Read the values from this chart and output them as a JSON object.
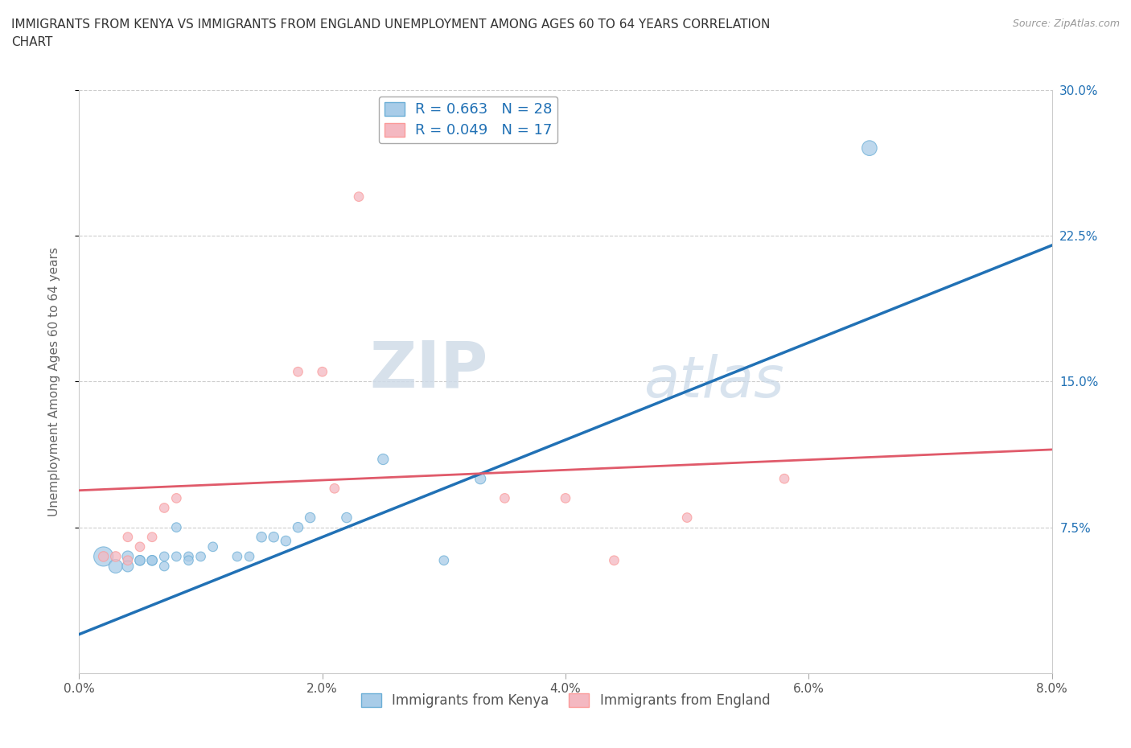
{
  "title_line1": "IMMIGRANTS FROM KENYA VS IMMIGRANTS FROM ENGLAND UNEMPLOYMENT AMONG AGES 60 TO 64 YEARS CORRELATION",
  "title_line2": "CHART",
  "source": "Source: ZipAtlas.com",
  "xlim": [
    0.0,
    0.08
  ],
  "ylim": [
    0.0,
    0.3
  ],
  "ylabel": "Unemployment Among Ages 60 to 64 years",
  "yticks": [
    0.075,
    0.15,
    0.225,
    0.3
  ],
  "ytick_labels": [
    "7.5%",
    "15.0%",
    "22.5%",
    "30.0%"
  ],
  "xticks": [
    0.0,
    0.02,
    0.04,
    0.06,
    0.08
  ],
  "xtick_labels": [
    "0.0%",
    "2.0%",
    "4.0%",
    "6.0%",
    "8.0%"
  ],
  "kenya_x": [
    0.002,
    0.003,
    0.004,
    0.004,
    0.005,
    0.005,
    0.006,
    0.006,
    0.007,
    0.007,
    0.008,
    0.008,
    0.009,
    0.009,
    0.01,
    0.011,
    0.013,
    0.014,
    0.015,
    0.016,
    0.017,
    0.018,
    0.019,
    0.022,
    0.025,
    0.03,
    0.033,
    0.065
  ],
  "kenya_y": [
    0.06,
    0.055,
    0.06,
    0.055,
    0.058,
    0.058,
    0.058,
    0.058,
    0.06,
    0.055,
    0.06,
    0.075,
    0.06,
    0.058,
    0.06,
    0.065,
    0.06,
    0.06,
    0.07,
    0.07,
    0.068,
    0.075,
    0.08,
    0.08,
    0.11,
    0.058,
    0.1,
    0.27
  ],
  "kenya_sizes": [
    300,
    150,
    100,
    100,
    80,
    80,
    80,
    80,
    70,
    70,
    70,
    70,
    70,
    70,
    70,
    70,
    70,
    70,
    80,
    80,
    80,
    80,
    80,
    80,
    90,
    70,
    90,
    180
  ],
  "england_x": [
    0.002,
    0.003,
    0.004,
    0.004,
    0.005,
    0.006,
    0.007,
    0.008,
    0.018,
    0.02,
    0.021,
    0.023,
    0.035,
    0.04,
    0.044,
    0.05,
    0.058
  ],
  "england_y": [
    0.06,
    0.06,
    0.058,
    0.07,
    0.065,
    0.07,
    0.085,
    0.09,
    0.155,
    0.155,
    0.095,
    0.245,
    0.09,
    0.09,
    0.058,
    0.08,
    0.1
  ],
  "england_sizes": [
    80,
    80,
    70,
    70,
    70,
    70,
    70,
    70,
    70,
    70,
    70,
    70,
    70,
    70,
    70,
    70,
    70
  ],
  "kenya_color": "#a8cce8",
  "england_color": "#f4b8c1",
  "kenya_edge_color": "#6baed6",
  "england_edge_color": "#fb9a99",
  "kenya_line_color": "#2171b5",
  "england_line_color": "#e05a6a",
  "kenya_r": 0.663,
  "kenya_n": 28,
  "england_r": 0.049,
  "england_n": 17,
  "legend_label_kenya": "Immigrants from Kenya",
  "legend_label_england": "Immigrants from England",
  "watermark_zip": "ZIP",
  "watermark_atlas": "atlas",
  "background_color": "#ffffff",
  "grid_color": "#cccccc",
  "right_tick_color": "#2171b5",
  "axis_label_color": "#666666"
}
